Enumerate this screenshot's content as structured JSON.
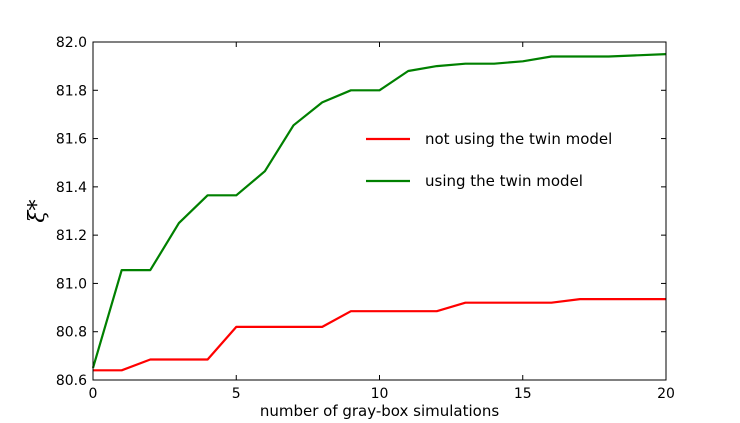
{
  "chart_data": {
    "type": "line",
    "xlabel": "number of gray-box simulations",
    "ylabel": "ξ*",
    "xlim": [
      0,
      20
    ],
    "ylim": [
      80.6,
      82.0
    ],
    "xticks": [
      0,
      5,
      10,
      15,
      20
    ],
    "yticks": [
      80.6,
      80.8,
      81.0,
      81.2,
      81.4,
      81.6,
      81.8,
      82.0
    ],
    "ytick_labels": [
      "80.6",
      "80.8",
      "81.0",
      "81.2",
      "81.4",
      "81.6",
      "81.8",
      "82.0"
    ],
    "grid": false,
    "legend_position": "center-right",
    "x": [
      0,
      1,
      2,
      3,
      4,
      5,
      6,
      7,
      8,
      9,
      10,
      11,
      12,
      13,
      14,
      15,
      16,
      17,
      18,
      19,
      20
    ],
    "series": [
      {
        "name": "not using the twin model",
        "color": "#ff0000",
        "values": [
          80.64,
          80.64,
          80.685,
          80.685,
          80.685,
          80.82,
          80.82,
          80.82,
          80.82,
          80.885,
          80.885,
          80.885,
          80.885,
          80.92,
          80.92,
          80.92,
          80.92,
          80.935,
          80.935,
          80.935,
          80.935
        ]
      },
      {
        "name": "using the twin model",
        "color": "#008000",
        "values": [
          80.65,
          81.055,
          81.055,
          81.25,
          81.365,
          81.365,
          81.465,
          81.655,
          81.75,
          81.8,
          81.8,
          81.88,
          81.9,
          81.91,
          81.91,
          81.92,
          81.94,
          81.94,
          81.94,
          81.945,
          81.95
        ]
      }
    ]
  }
}
